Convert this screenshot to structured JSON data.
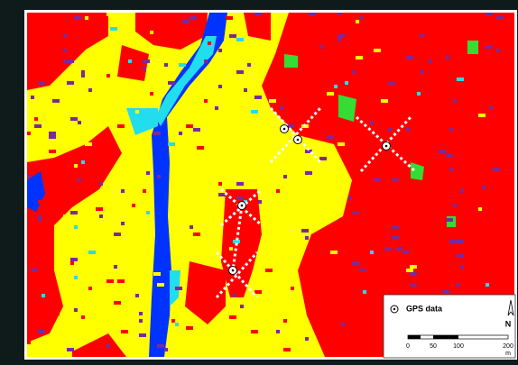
{
  "legend": {
    "gps_label": "GPS data",
    "north": "N",
    "scale": {
      "ticks": [
        0,
        50,
        100,
        200
      ],
      "unit": "m"
    }
  }
}
